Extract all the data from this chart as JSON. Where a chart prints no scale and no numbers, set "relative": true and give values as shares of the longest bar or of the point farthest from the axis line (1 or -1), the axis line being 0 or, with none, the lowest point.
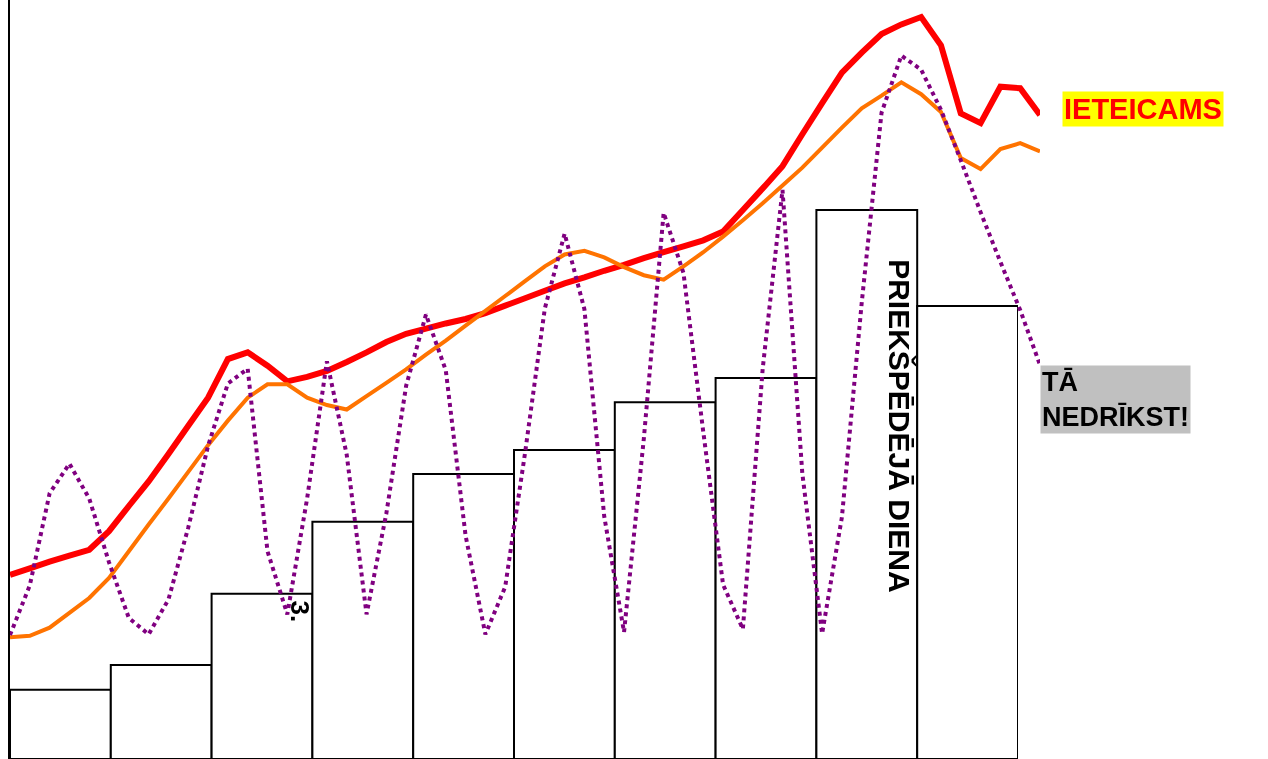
{
  "chart_data": [
    {
      "type": "bar",
      "relative": true,
      "categories": [
        null,
        null,
        null,
        null,
        null,
        null,
        null,
        null,
        null,
        null
      ],
      "series": [
        {
          "color": "#ffffff",
          "values": [
            0.126,
            0.171,
            0.301,
            0.432,
            0.519,
            0.563,
            0.65,
            0.694,
            1,
            0.825
          ]
        }
      ],
      "annotations": [
        "PRIEKŠPĒDĒJĀ DIENA",
        "3."
      ]
    },
    {
      "type": "line",
      "relative": true,
      "categories": [
        null,
        null,
        null,
        null,
        null,
        null,
        null,
        null,
        null,
        null,
        null,
        null,
        null,
        null,
        null,
        null,
        null,
        null,
        null,
        null,
        null,
        null,
        null,
        null,
        null,
        null,
        null,
        null,
        null,
        null,
        null,
        null,
        null,
        null,
        null,
        null,
        null,
        null,
        null,
        null,
        null,
        null,
        null,
        null,
        null,
        null,
        null,
        null,
        null,
        null,
        null,
        null,
        null
      ],
      "series": [
        {
          "name": "IETEICAMS",
          "color": "#ff0000",
          "values": [
            0.248,
            0.257,
            0.266,
            0.274,
            0.282,
            0.307,
            0.341,
            0.374,
            0.411,
            0.449,
            0.487,
            0.539,
            0.548,
            0.53,
            0.509,
            0.515,
            0.523,
            0.535,
            0.548,
            0.562,
            0.573,
            0.58,
            0.587,
            0.593,
            0.601,
            0.611,
            0.621,
            0.631,
            0.641,
            0.649,
            0.658,
            0.666,
            0.675,
            0.683,
            0.691,
            0.699,
            0.711,
            0.74,
            0.769,
            0.799,
            0.842,
            0.884,
            0.925,
            0.952,
            0.977,
            0.99,
            1,
            0.962,
            0.87,
            0.857,
            0.906,
            0.904,
            0.868
          ]
        },
        {
          "color": "#ff7300",
          "values": [
            0.164,
            0.166,
            0.177,
            0.197,
            0.217,
            0.244,
            0.28,
            0.316,
            0.351,
            0.387,
            0.423,
            0.456,
            0.487,
            0.505,
            0.505,
            0.487,
            0.477,
            0.471,
            0.489,
            0.507,
            0.525,
            0.545,
            0.564,
            0.584,
            0.604,
            0.624,
            0.644,
            0.664,
            0.68,
            0.685,
            0.676,
            0.663,
            0.652,
            0.646,
            0.664,
            0.683,
            0.704,
            0.726,
            0.749,
            0.773,
            0.797,
            0.824,
            0.851,
            0.877,
            0.894,
            0.912,
            0.896,
            0.872,
            0.81,
            0.795,
            0.822,
            0.83,
            0.819
          ]
        },
        {
          "name": "TĀ NEDRĪKST!",
          "color": "#800080",
          "line_style": "dotted",
          "values": [
            0.167,
            0.234,
            0.358,
            0.398,
            0.351,
            0.265,
            0.19,
            0.168,
            0.215,
            0.312,
            0.422,
            0.506,
            0.526,
            0.28,
            0.195,
            0.351,
            0.536,
            0.41,
            0.195,
            0.331,
            0.503,
            0.599,
            0.524,
            0.301,
            0.168,
            0.232,
            0.412,
            0.607,
            0.708,
            0.606,
            0.327,
            0.171,
            0.432,
            0.736,
            0.655,
            0.441,
            0.235,
            0.175,
            0.526,
            0.767,
            0.385,
            0.169,
            0.326,
            0.615,
            0.871,
            0.948,
            0.929,
            0.875,
            0.807,
            0.737,
            0.67,
            0.605,
            0.531
          ]
        }
      ]
    }
  ]
}
